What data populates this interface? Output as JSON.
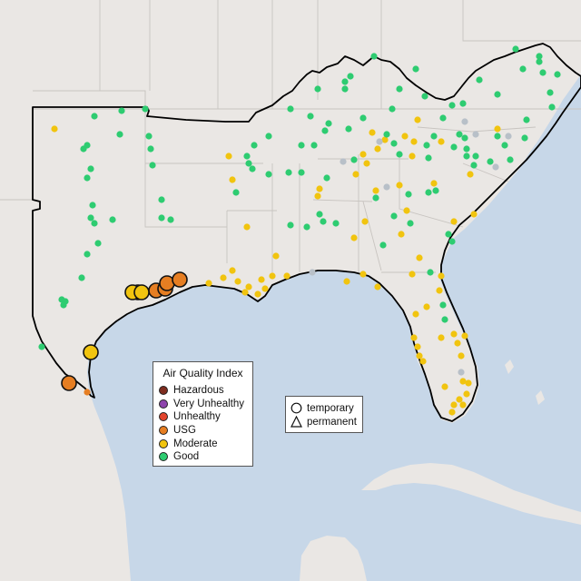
{
  "legend": {
    "title": "Air Quality Index",
    "categories": [
      {
        "label": "Hazardous",
        "color": "#7e2d1f"
      },
      {
        "label": "Very Unhealthy",
        "color": "#8e44ad"
      },
      {
        "label": "Unhealthy",
        "color": "#e2442d"
      },
      {
        "label": "USG",
        "color": "#e67e22"
      },
      {
        "label": "Moderate",
        "color": "#f1c40f"
      },
      {
        "label": "Good",
        "color": "#2ecc71"
      }
    ],
    "no_data_color": "#b8c0c8"
  },
  "monitor_types": [
    {
      "label": "temporary",
      "symbol": "circle-icon"
    },
    {
      "label": "permanent",
      "symbol": "triangle-icon"
    }
  ],
  "colors": {
    "ocean": "#c7d7e8",
    "land": "#eae7e4",
    "region_outline": "#000000",
    "state_border": "#c8c4c0"
  }
}
